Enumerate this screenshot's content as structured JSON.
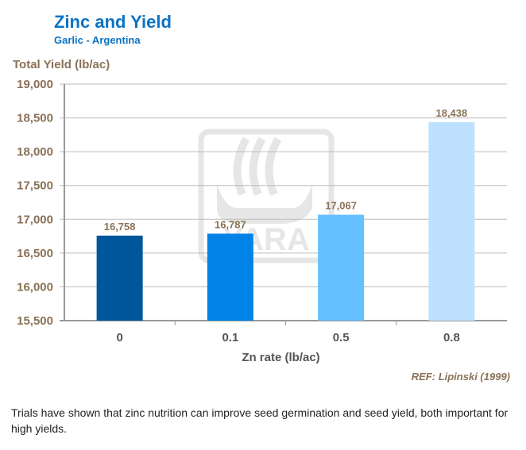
{
  "chart_data": {
    "type": "bar",
    "title": "Zinc and Yield",
    "subtitle": "Garlic  - Argentina",
    "ylabel": "Total Yield (lb/ac)",
    "xlabel": "Zn rate (lb/ac)",
    "categories": [
      "0",
      "0.1",
      "0.5",
      "0.8"
    ],
    "values": [
      16758,
      16787,
      17067,
      18438
    ],
    "data_labels": [
      "16,758",
      "16,787",
      "17,067",
      "18,438"
    ],
    "bar_colors": [
      "#00569a",
      "#0082e6",
      "#66bfff",
      "#bde1ff"
    ],
    "ylim": [
      15500,
      19000
    ],
    "yticks": [
      15500,
      16000,
      16500,
      17000,
      17500,
      18000,
      18500,
      19000
    ],
    "ytick_labels": [
      "15,500",
      "16,000",
      "16,500",
      "17,000",
      "17,500",
      "18,000",
      "18,500",
      "19,000"
    ],
    "grid": true,
    "reference": "REF: Lipinski (1999)"
  },
  "watermark": "YARA",
  "caption": "Trials have shown that zinc nutrition can improve seed germination and seed yield, both important for high yields."
}
